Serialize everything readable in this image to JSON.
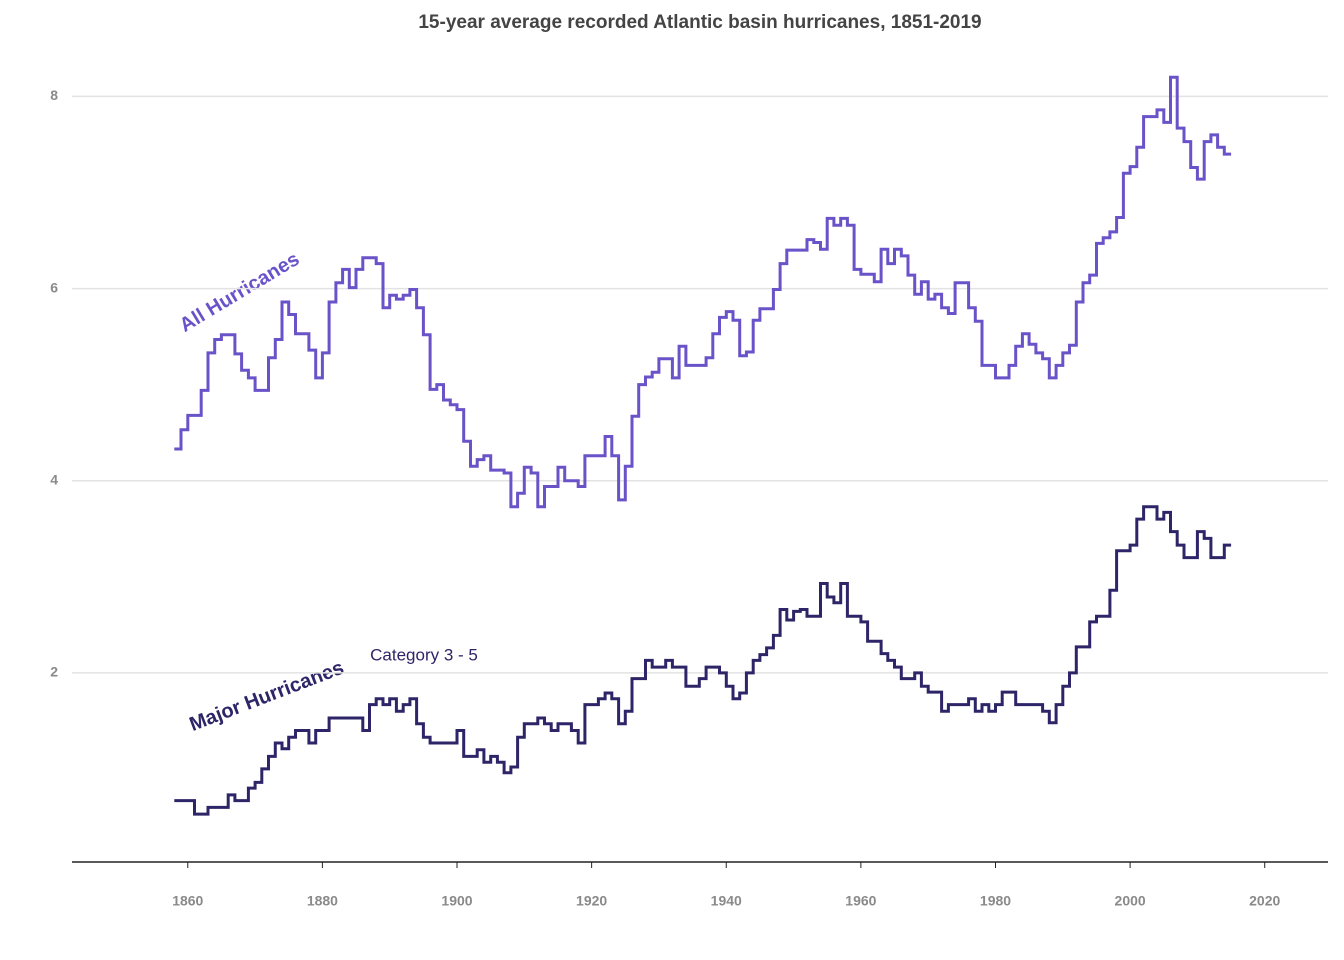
{
  "chart_data": {
    "type": "step",
    "title": "15-year average recorded Atlantic basin hurricanes, 1851-2019",
    "annotations": [
      "All Hurricanes",
      "Major Hurricanes",
      "Category 3 - 5"
    ],
    "x": [
      1858,
      1859,
      1860,
      1861,
      1862,
      1863,
      1864,
      1865,
      1866,
      1867,
      1868,
      1869,
      1870,
      1871,
      1872,
      1873,
      1874,
      1875,
      1876,
      1877,
      1878,
      1879,
      1880,
      1881,
      1882,
      1883,
      1884,
      1885,
      1886,
      1887,
      1888,
      1889,
      1890,
      1891,
      1892,
      1893,
      1894,
      1895,
      1896,
      1897,
      1898,
      1899,
      1900,
      1901,
      1902,
      1903,
      1904,
      1905,
      1906,
      1907,
      1908,
      1909,
      1910,
      1911,
      1912,
      1913,
      1914,
      1915,
      1916,
      1917,
      1918,
      1919,
      1920,
      1921,
      1922,
      1923,
      1924,
      1925,
      1926,
      1927,
      1928,
      1929,
      1930,
      1931,
      1932,
      1933,
      1934,
      1935,
      1936,
      1937,
      1938,
      1939,
      1940,
      1941,
      1942,
      1943,
      1944,
      1945,
      1946,
      1947,
      1948,
      1949,
      1950,
      1951,
      1952,
      1953,
      1954,
      1955,
      1956,
      1957,
      1958,
      1959,
      1960,
      1961,
      1962,
      1963,
      1964,
      1965,
      1966,
      1967,
      1968,
      1969,
      1970,
      1971,
      1972,
      1973,
      1974,
      1975,
      1976,
      1977,
      1978,
      1979,
      1980,
      1981,
      1982,
      1983,
      1984,
      1985,
      1986,
      1987,
      1988,
      1989,
      1990,
      1991,
      1992,
      1993,
      1994,
      1995,
      1996,
      1997,
      1998,
      1999,
      2000,
      2001,
      2002,
      2003,
      2004,
      2005,
      2006,
      2007,
      2008,
      2009,
      2010,
      2011,
      2012,
      2013,
      2014
    ],
    "series": [
      {
        "name": "All Hurricanes",
        "color": "#6a52c9",
        "values": [
          4.33,
          4.53,
          4.68,
          4.68,
          4.94,
          5.33,
          5.47,
          5.52,
          5.52,
          5.32,
          5.15,
          5.07,
          4.94,
          4.94,
          5.28,
          5.47,
          5.86,
          5.73,
          5.53,
          5.53,
          5.36,
          5.07,
          5.33,
          5.86,
          6.06,
          6.2,
          6.01,
          6.2,
          6.32,
          6.32,
          6.26,
          5.8,
          5.93,
          5.89,
          5.93,
          5.99,
          5.8,
          5.52,
          4.95,
          5.0,
          4.84,
          4.79,
          4.74,
          4.41,
          4.15,
          4.22,
          4.26,
          4.11,
          4.11,
          4.08,
          3.73,
          3.87,
          4.14,
          4.08,
          3.73,
          3.94,
          3.94,
          4.14,
          4.0,
          4.0,
          3.94,
          4.26,
          4.26,
          4.26,
          4.46,
          4.26,
          3.8,
          4.15,
          4.67,
          5.0,
          5.08,
          5.13,
          5.27,
          5.27,
          5.07,
          5.4,
          5.2,
          5.2,
          5.2,
          5.28,
          5.53,
          5.7,
          5.76,
          5.67,
          5.3,
          5.34,
          5.67,
          5.79,
          5.79,
          5.99,
          6.26,
          6.4,
          6.4,
          6.4,
          6.51,
          6.48,
          6.41,
          6.73,
          6.66,
          6.73,
          6.66,
          6.2,
          6.15,
          6.15,
          6.07,
          6.41,
          6.26,
          6.41,
          6.34,
          6.14,
          5.94,
          6.07,
          5.89,
          5.94,
          5.8,
          5.74,
          6.06,
          6.06,
          5.8,
          5.66,
          5.2,
          5.2,
          5.07,
          5.07,
          5.2,
          5.4,
          5.53,
          5.42,
          5.33,
          5.27,
          5.07,
          5.2,
          5.33,
          5.41,
          5.86,
          6.06,
          6.14,
          6.47,
          6.53,
          6.59,
          6.74,
          7.2,
          7.27,
          7.47,
          7.79,
          7.79,
          7.86,
          7.73,
          8.2,
          7.67,
          7.53,
          7.26,
          7.14,
          7.53,
          7.6,
          7.47,
          7.4
        ]
      },
      {
        "name": "Major Hurricanes",
        "color": "#2e2568",
        "values": [
          0.67,
          0.67,
          0.67,
          0.53,
          0.53,
          0.6,
          0.6,
          0.6,
          0.73,
          0.67,
          0.67,
          0.8,
          0.86,
          1.0,
          1.13,
          1.27,
          1.21,
          1.33,
          1.4,
          1.4,
          1.27,
          1.4,
          1.4,
          1.53,
          1.53,
          1.53,
          1.53,
          1.53,
          1.4,
          1.67,
          1.73,
          1.67,
          1.73,
          1.6,
          1.67,
          1.73,
          1.47,
          1.33,
          1.27,
          1.27,
          1.27,
          1.27,
          1.4,
          1.13,
          1.13,
          1.2,
          1.07,
          1.13,
          1.07,
          0.96,
          1.02,
          1.33,
          1.47,
          1.47,
          1.53,
          1.47,
          1.4,
          1.47,
          1.47,
          1.4,
          1.27,
          1.67,
          1.67,
          1.73,
          1.79,
          1.73,
          1.47,
          1.6,
          1.94,
          1.94,
          2.13,
          2.06,
          2.06,
          2.13,
          2.06,
          2.06,
          1.86,
          1.86,
          1.94,
          2.06,
          2.06,
          2.0,
          1.86,
          1.73,
          1.79,
          2.0,
          2.13,
          2.19,
          2.26,
          2.39,
          2.66,
          2.55,
          2.64,
          2.66,
          2.59,
          2.59,
          2.93,
          2.79,
          2.73,
          2.93,
          2.59,
          2.59,
          2.53,
          2.33,
          2.33,
          2.2,
          2.13,
          2.06,
          1.94,
          1.94,
          2.0,
          1.86,
          1.8,
          1.8,
          1.6,
          1.67,
          1.67,
          1.67,
          1.73,
          1.6,
          1.67,
          1.6,
          1.67,
          1.8,
          1.8,
          1.67,
          1.67,
          1.67,
          1.67,
          1.6,
          1.48,
          1.67,
          1.86,
          2.0,
          2.27,
          2.27,
          2.53,
          2.59,
          2.59,
          2.86,
          3.27,
          3.27,
          3.33,
          3.6,
          3.73,
          3.73,
          3.6,
          3.67,
          3.47,
          3.33,
          3.2,
          3.2,
          3.47,
          3.4,
          3.2,
          3.2,
          3.33
        ]
      }
    ],
    "xlim": [
      1842.8,
      2029.4
    ],
    "ylim": [
      0,
      8.4
    ],
    "xticks": [
      1860,
      1880,
      1900,
      1920,
      1940,
      1960,
      1980,
      2000,
      2020
    ],
    "yticks": [
      2,
      4,
      6,
      8
    ],
    "grid": true
  }
}
